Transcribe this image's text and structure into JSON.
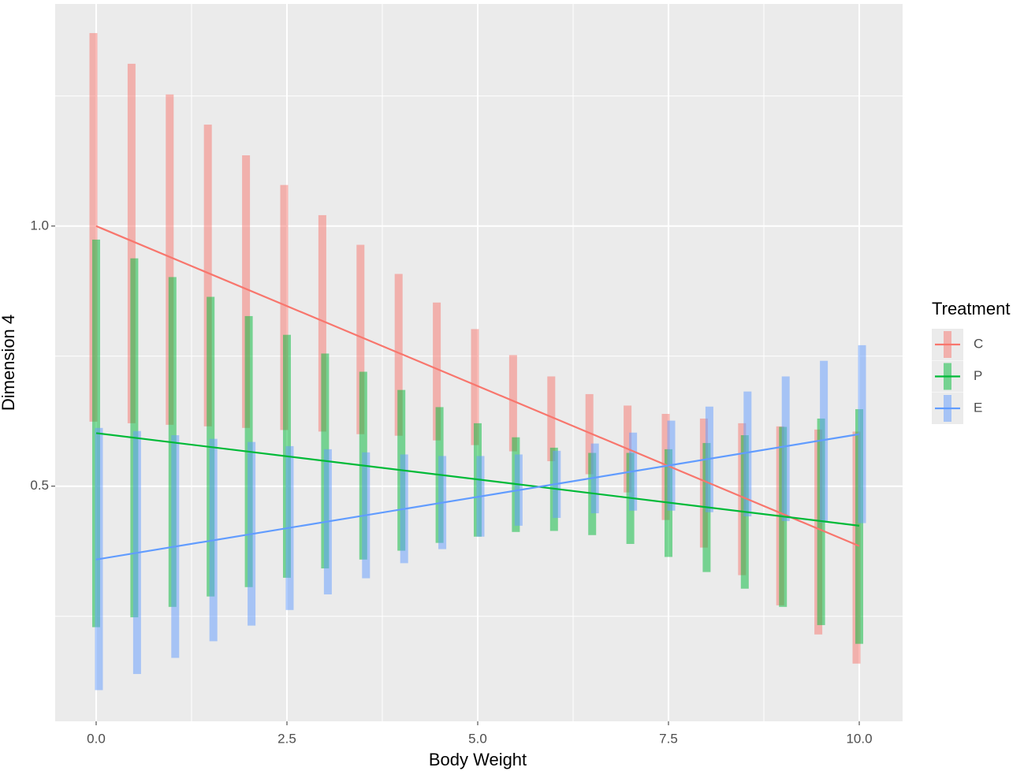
{
  "chart_data": {
    "type": "linerange",
    "x_label": "Body Weight",
    "y_label": "Dimension 4",
    "legend_title": "Treatment",
    "legend_position": "right",
    "grid": true,
    "xlim": [
      -0.537,
      10.568
    ],
    "ylim": [
      0.048,
      1.427
    ],
    "xticks": [
      {
        "value": 0,
        "label": "0.0"
      },
      2.5,
      {
        "value": 5,
        "label": "5.0"
      },
      7.5,
      {
        "value": 10,
        "label": "10.0"
      }
    ],
    "yticks": [
      0.5,
      {
        "value": 1,
        "label": "1.0"
      }
    ],
    "xminor": [
      1.25,
      3.75,
      6.25,
      8.75
    ],
    "yminor": [
      0.25,
      0.75,
      1.25
    ],
    "x": [
      0,
      0.5,
      1,
      1.5,
      2,
      2.5,
      3,
      3.5,
      4,
      4.5,
      5,
      5.5,
      6,
      6.5,
      7,
      7.5,
      8,
      8.5,
      9,
      9.5,
      10
    ],
    "trend_x": [
      0,
      10
    ],
    "series": [
      {
        "name": "C",
        "color": "#F8766D",
        "low": [
          0.624,
          0.621,
          0.618,
          0.615,
          0.612,
          0.608,
          0.605,
          0.6,
          0.597,
          0.588,
          0.579,
          0.567,
          0.548,
          0.523,
          0.488,
          0.435,
          0.382,
          0.329,
          0.271,
          0.215,
          0.159
        ],
        "high": [
          1.371,
          1.312,
          1.253,
          1.195,
          1.136,
          1.079,
          1.021,
          0.964,
          0.908,
          0.853,
          0.802,
          0.752,
          0.711,
          0.677,
          0.655,
          0.639,
          0.63,
          0.621,
          0.615,
          0.609,
          0.605
        ],
        "trend": [
          1.0,
          0.385
        ]
      },
      {
        "name": "P",
        "color": "#00BA38",
        "low": [
          0.229,
          0.248,
          0.268,
          0.288,
          0.306,
          0.324,
          0.342,
          0.359,
          0.376,
          0.391,
          0.403,
          0.412,
          0.414,
          0.406,
          0.389,
          0.364,
          0.335,
          0.303,
          0.268,
          0.233,
          0.197
        ],
        "high": [
          0.974,
          0.938,
          0.902,
          0.864,
          0.827,
          0.791,
          0.755,
          0.72,
          0.685,
          0.652,
          0.621,
          0.594,
          0.574,
          0.564,
          0.564,
          0.571,
          0.583,
          0.598,
          0.614,
          0.63,
          0.648
        ],
        "trend": [
          0.602,
          0.424
        ]
      },
      {
        "name": "E",
        "color": "#619CFF",
        "low": [
          0.108,
          0.139,
          0.17,
          0.202,
          0.232,
          0.262,
          0.292,
          0.323,
          0.352,
          0.379,
          0.403,
          0.424,
          0.439,
          0.448,
          0.453,
          0.453,
          0.45,
          0.442,
          0.433,
          0.43,
          0.429
        ],
        "high": [
          0.612,
          0.606,
          0.598,
          0.591,
          0.585,
          0.577,
          0.571,
          0.565,
          0.561,
          0.558,
          0.558,
          0.561,
          0.568,
          0.582,
          0.603,
          0.626,
          0.653,
          0.682,
          0.711,
          0.741,
          0.771
        ],
        "trend": [
          0.359,
          0.6
        ]
      }
    ]
  }
}
